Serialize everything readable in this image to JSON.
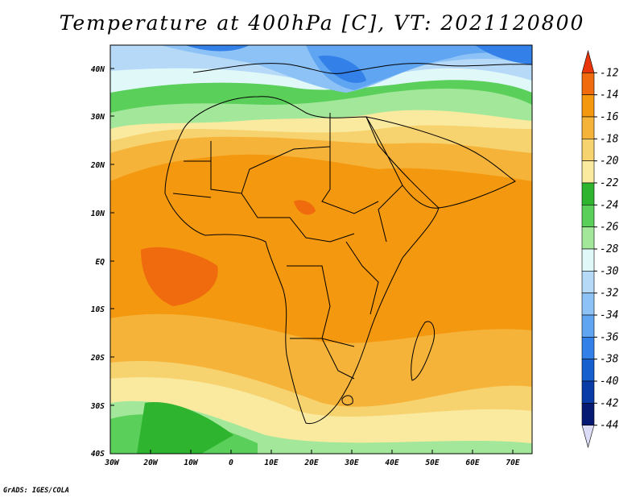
{
  "title": "Temperature at 400hPa [C], VT: 2021120800",
  "credit": "GrADS: IGES/COLA",
  "axes": {
    "lat_labels": [
      "40N",
      "30N",
      "20N",
      "10N",
      "EQ",
      "10S",
      "20S",
      "30S",
      "40S"
    ],
    "lon_labels": [
      "30W",
      "20W",
      "10W",
      "0",
      "10E",
      "20E",
      "30E",
      "40E",
      "50E",
      "60E",
      "70E"
    ]
  },
  "colorbar": {
    "labels": [
      "-12",
      "-14",
      "-16",
      "-18",
      "-20",
      "-22",
      "-24",
      "-26",
      "-28",
      "-30",
      "-32",
      "-34",
      "-36",
      "-38",
      "-40",
      "-42",
      "-44"
    ],
    "colors": [
      "#e8360a",
      "#f06a0e",
      "#f4980f",
      "#f6b33a",
      "#f7d36f",
      "#faeaa0",
      "#2fb42f",
      "#5acf5a",
      "#a3e89a",
      "#e0f8f8",
      "#b6d9f8",
      "#8dc2f6",
      "#5fa5f2",
      "#3380e8",
      "#155fcf",
      "#0a3ca8",
      "#071a73",
      "#dcdcf6"
    ]
  }
}
